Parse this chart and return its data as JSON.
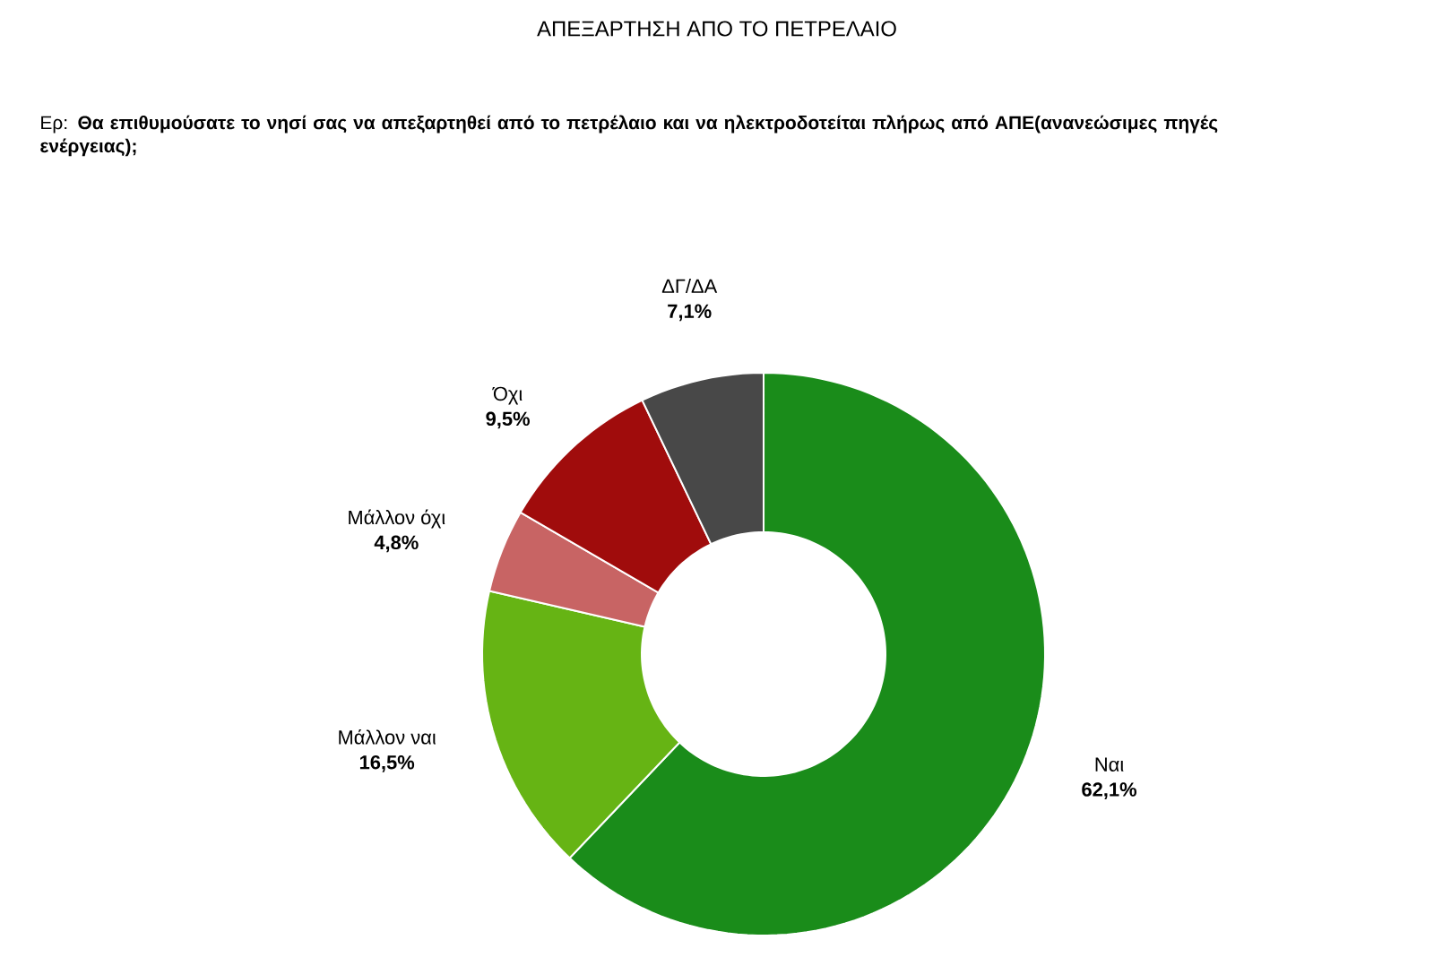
{
  "chart_data": {
    "type": "donut",
    "title": "ΑΠΕΞΑΡΤΗΣΗ ΑΠΟ ΤΟ ΠΕΤΡΕΛΑΙΟ",
    "subtitle": "Ερ: **Θα επιθυμούσατε το νησί σας να απεξαρτηθεί από το πετρέλαιο και να ηλεκτροδοτείται πλήρως από ΑΠΕ(ανανεώσιμες πηγές ενέργειας);**",
    "categories": [
      "Ναι",
      "Μάλλον ναι",
      "Μάλλον όχι",
      "Όχι",
      "ΔΓ/ΔΑ"
    ],
    "values": [
      62.1,
      16.5,
      4.8,
      9.5,
      7.1
    ],
    "value_labels": [
      "62,1%",
      "16,5%",
      "4,8%",
      "9,5%",
      "7,1%"
    ],
    "colors": [
      "#1a8c1a",
      "#66b414",
      "#c86464",
      "#a00c0c",
      "#484848"
    ]
  }
}
